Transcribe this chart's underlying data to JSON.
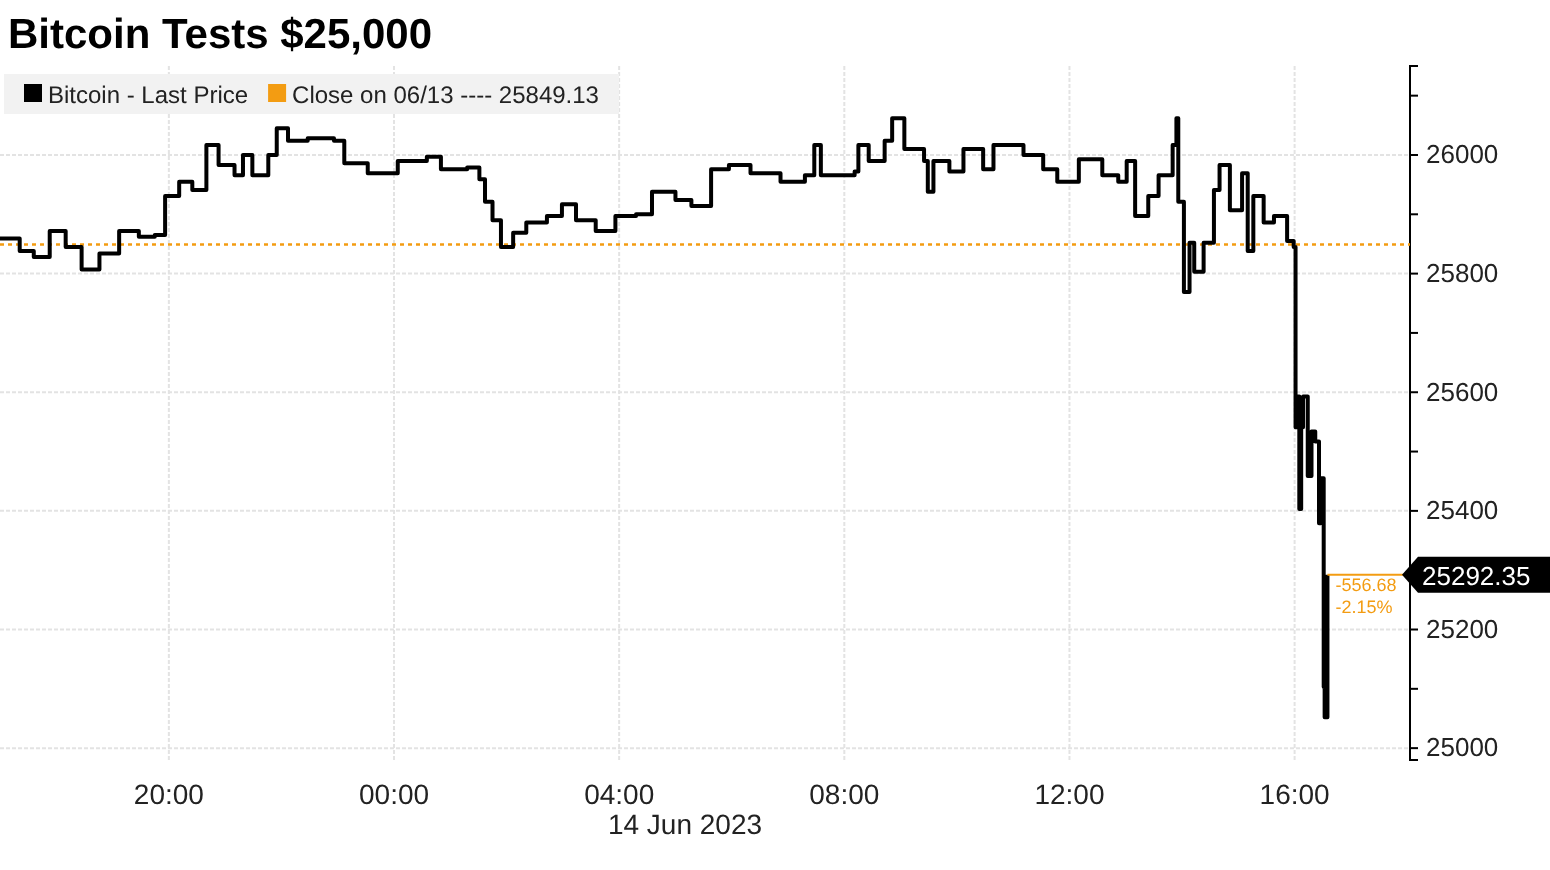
{
  "chart_data": {
    "type": "step",
    "title": "Bitcoin Tests $25,000",
    "xlabel": "14 Jun 2023",
    "xlim": [
      "2023-06-13T17:00",
      "2023-06-14T18:03"
    ],
    "xticks": [
      {
        "value": "2023-06-13T20:00",
        "label": "20:00"
      },
      {
        "value": "2023-06-14T00:00",
        "label": "00:00"
      },
      {
        "value": "2023-06-14T04:00",
        "label": "04:00"
      },
      {
        "value": "2023-06-14T08:00",
        "label": "08:00"
      },
      {
        "value": "2023-06-14T12:00",
        "label": "12:00"
      },
      {
        "value": "2023-06-14T16:00",
        "label": "16:00"
      }
    ],
    "ylim": [
      24980,
      26150
    ],
    "yticks": [
      25000,
      {
        "value": 25100,
        "label": null
      },
      25200,
      {
        "value": 25300,
        "label": null
      },
      25400,
      {
        "value": 25500,
        "label": null
      },
      25600,
      {
        "value": 25700,
        "label": null
      },
      25800,
      {
        "value": 25900,
        "label": null
      },
      26000,
      {
        "value": 26100,
        "label": null
      }
    ],
    "grid": true,
    "legend": "top left",
    "line_style": "solid",
    "marker": "none",
    "series": [
      {
        "name": "Bitcoin - Last Price",
        "color": "#000000",
        "x": [
          "2023-06-13T17:00",
          "2023-06-13T17:21",
          "2023-06-13T17:36",
          "2023-06-13T17:53",
          "2023-06-13T18:10",
          "2023-06-13T18:27",
          "2023-06-13T18:46",
          "2023-06-13T19:07",
          "2023-06-13T19:28",
          "2023-06-13T19:45",
          "2023-06-13T19:56",
          "2023-06-13T20:11",
          "2023-06-13T20:25",
          "2023-06-13T20:40",
          "2023-06-13T20:53",
          "2023-06-13T21:10",
          "2023-06-13T21:19",
          "2023-06-13T21:29",
          "2023-06-13T21:46",
          "2023-06-13T21:55",
          "2023-06-13T22:07",
          "2023-06-13T22:28",
          "2023-06-13T22:56",
          "2023-06-13T23:07",
          "2023-06-13T23:32",
          "2023-06-14T00:04",
          "2023-06-14T00:35",
          "2023-06-14T00:50",
          "2023-06-14T01:18",
          "2023-06-14T01:31",
          "2023-06-14T01:37",
          "2023-06-14T01:45",
          "2023-06-14T01:54",
          "2023-06-14T02:07",
          "2023-06-14T02:21",
          "2023-06-14T02:43",
          "2023-06-14T02:59",
          "2023-06-14T03:14",
          "2023-06-14T03:35",
          "2023-06-14T03:56",
          "2023-06-14T04:18",
          "2023-06-14T04:35",
          "2023-06-14T05:00",
          "2023-06-14T05:17",
          "2023-06-14T05:38",
          "2023-06-14T05:57",
          "2023-06-14T06:20",
          "2023-06-14T06:52",
          "2023-06-14T07:01",
          "2023-06-14T07:18",
          "2023-06-14T07:28",
          "2023-06-14T07:35",
          "2023-06-14T08:11",
          "2023-06-14T08:15",
          "2023-06-14T08:26",
          "2023-06-14T08:43",
          "2023-06-14T08:51",
          "2023-06-14T09:04",
          "2023-06-14T09:25",
          "2023-06-14T09:29",
          "2023-06-14T09:35",
          "2023-06-14T09:52",
          "2023-06-14T10:07",
          "2023-06-14T10:22",
          "2023-06-14T10:28",
          "2023-06-14T10:39",
          "2023-06-14T11:11",
          "2023-06-14T11:32",
          "2023-06-14T11:47",
          "2023-06-14T12:10",
          "2023-06-14T12:35",
          "2023-06-14T12:52",
          "2023-06-14T13:01",
          "2023-06-14T13:10",
          "2023-06-14T13:24",
          "2023-06-14T13:35",
          "2023-06-14T13:50",
          "2023-06-14T13:54",
          "2023-06-14T13:56",
          "2023-06-14T14:02",
          "2023-06-14T14:08",
          "2023-06-14T14:13",
          "2023-06-14T14:23",
          "2023-06-14T14:34",
          "2023-06-14T14:40",
          "2023-06-14T14:51",
          "2023-06-14T15:04",
          "2023-06-14T15:10",
          "2023-06-14T15:16",
          "2023-06-14T15:27",
          "2023-06-14T15:38",
          "2023-06-14T15:52",
          "2023-06-14T15:59",
          "2023-06-14T16:01",
          "2023-06-14T16:03",
          "2023-06-14T16:05",
          "2023-06-14T16:07",
          "2023-06-14T16:09",
          "2023-06-14T16:14",
          "2023-06-14T16:18",
          "2023-06-14T16:22",
          "2023-06-14T16:26",
          "2023-06-14T16:28",
          "2023-06-14T16:31",
          "2023-06-14T16:32",
          "2023-06-14T16:35"
        ],
        "values": [
          25859,
          25838,
          25828,
          25872,
          25845,
          25807,
          25834,
          25872,
          25862,
          25865,
          25931,
          25955,
          25941,
          26017,
          25983,
          25966,
          26000,
          25966,
          26000,
          26045,
          26024,
          26028,
          26024,
          25986,
          25969,
          25990,
          25997,
          25976,
          25979,
          25959,
          25921,
          25890,
          25845,
          25869,
          25886,
          25897,
          25917,
          25890,
          25872,
          25897,
          25900,
          25938,
          25924,
          25914,
          25976,
          25983,
          25969,
          25955,
          25955,
          25966,
          26017,
          25966,
          25972,
          26017,
          25990,
          26024,
          26062,
          26010,
          25990,
          25938,
          25990,
          25972,
          26010,
          26010,
          25976,
          26017,
          26000,
          25976,
          25955,
          25993,
          25966,
          25955,
          25990,
          25897,
          25931,
          25966,
          26017,
          26062,
          25921,
          25769,
          25852,
          25803,
          25852,
          25941,
          25983,
          25907,
          25969,
          25838,
          25931,
          25886,
          25897,
          25855,
          25845,
          25541,
          25593,
          25403,
          25541,
          25593,
          25459,
          25534,
          25517,
          25379,
          25455,
          25103,
          25052,
          25292.35
        ]
      }
    ],
    "ref_lines": [
      {
        "axis": "y",
        "value": 25849.13,
        "label": "Close on 06/13 ---- 25849.13",
        "color": "#f39c12",
        "line_style": "dotted"
      }
    ],
    "annotations": [
      {
        "text": "25292.35",
        "x": "2023-06-14T16:35",
        "y": 25292.35
      },
      {
        "text": "-556.68",
        "x": "2023-06-14T16:35",
        "y": 25292.35
      },
      {
        "text": "-2.15%",
        "x": "2023-06-14T16:35",
        "y": 25292.35
      }
    ]
  }
}
